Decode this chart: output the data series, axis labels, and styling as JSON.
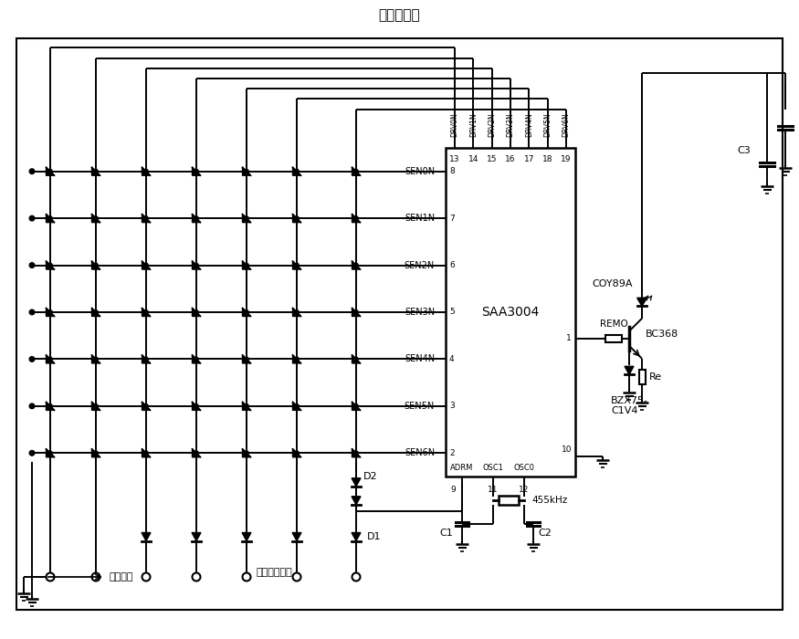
{
  "title": "红外发射机",
  "background": "#ffffff",
  "ic_label": "SAA3004",
  "sen_labels": [
    "SEN0N",
    "SEN1N",
    "SEN2N",
    "SEN3N",
    "SEN4N",
    "SEN5N",
    "SEN6N"
  ],
  "drv_labels": [
    "DRV0N",
    "DRV1N",
    "DRV2N",
    "DRV3N",
    "DRV4N",
    "DRV5N",
    "DRV6N"
  ],
  "ic_pins_left_nums": [
    "8",
    "7",
    "6",
    "5",
    "4",
    "3",
    "2"
  ],
  "ic_pins_top_nums": [
    "13",
    "14",
    "15",
    "16",
    "17",
    "18",
    "19"
  ],
  "bottom_label1": "任选的二极管",
  "bottom_label2": "地址选择",
  "label_coy": "COY89A",
  "label_bc": "BC368",
  "label_re": "Re",
  "label_bzx": "BZX75-\nC1V4",
  "label_remo": "REMO",
  "label_455": "455kHz",
  "label_c1": "C1",
  "label_c2": "C2",
  "label_c3": "C3",
  "label_d1": "D1",
  "label_d2": "D2",
  "label_adrm": "ADRM",
  "label_osc1": "OSC1",
  "label_osc0": "OSC0",
  "label_pin10": "10"
}
